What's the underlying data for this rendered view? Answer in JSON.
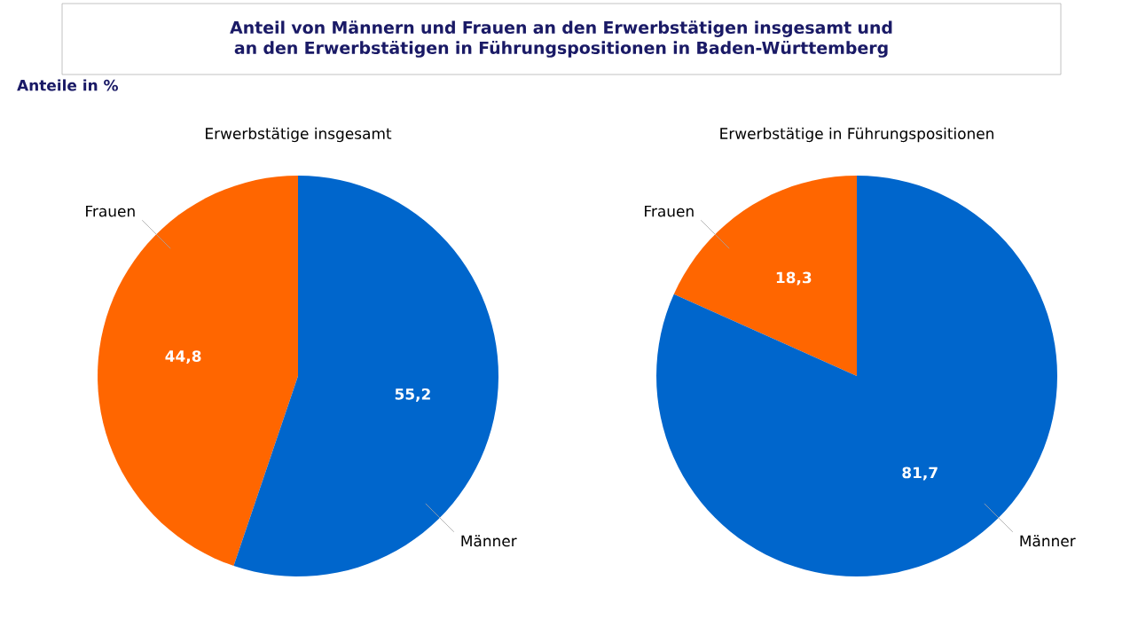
{
  "chart_data": [
    {
      "type": "pie",
      "title": "Anteil von Männern und Frauen an den Erwerbstätigen insgesamt und an den Erwerbstätigen in Führungspositionen in Baden-Württemberg",
      "annotations": [
        "Anteile in %"
      ],
      "subtitle": "Erwerbstätige insgesamt",
      "categories": [
        "Frauen",
        "Männer"
      ],
      "values": [
        44.8,
        55.2
      ],
      "value_labels": [
        "44,8",
        "55,2"
      ],
      "colors": [
        "#ff6600",
        "#0066cc"
      ]
    },
    {
      "type": "pie",
      "subtitle": "Erwerbstätige in Führungspositionen",
      "categories": [
        "Frauen",
        "Männer"
      ],
      "values": [
        18.3,
        81.7
      ],
      "value_labels": [
        "18,3",
        "81,7"
      ],
      "colors": [
        "#ff6600",
        "#0066cc"
      ]
    }
  ]
}
